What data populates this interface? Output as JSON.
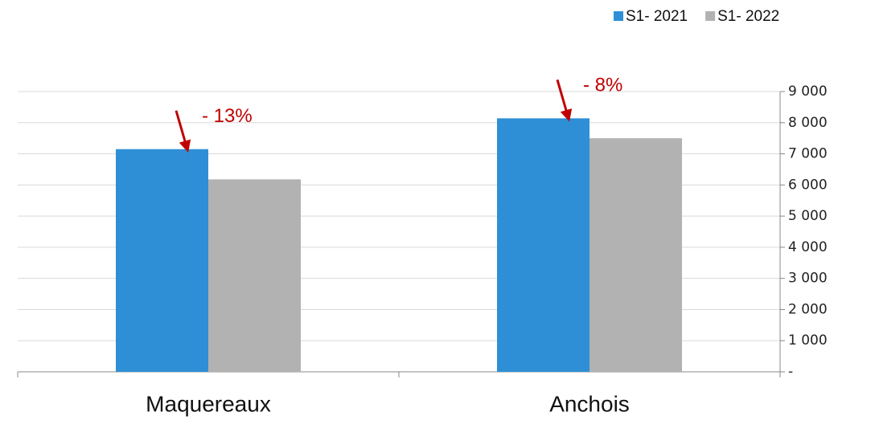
{
  "chart_data": {
    "type": "bar",
    "categories": [
      "Maquereaux",
      "Anchois"
    ],
    "series": [
      {
        "name": "S1- 2021",
        "color": "#2e8fd6",
        "values": [
          7150,
          8140
        ]
      },
      {
        "name": "S1- 2022",
        "color": "#b2b2b2",
        "values": [
          6180,
          7500
        ]
      }
    ],
    "ylim": [
      0,
      9000
    ],
    "yticks": [
      {
        "value": 0,
        "label": "-"
      },
      {
        "value": 1000,
        "label": "1 000"
      },
      {
        "value": 2000,
        "label": "2 000"
      },
      {
        "value": 3000,
        "label": "3 000"
      },
      {
        "value": 4000,
        "label": "4 000"
      },
      {
        "value": 5000,
        "label": "5 000"
      },
      {
        "value": 6000,
        "label": "6 000"
      },
      {
        "value": 7000,
        "label": "7 000"
      },
      {
        "value": 8000,
        "label": "8 000"
      },
      {
        "value": 9000,
        "label": "9 000"
      }
    ],
    "grid": true,
    "legend": "top-right",
    "annotations": [
      "- 13%",
      "- 8%"
    ],
    "annotation_color": "#c00000"
  }
}
